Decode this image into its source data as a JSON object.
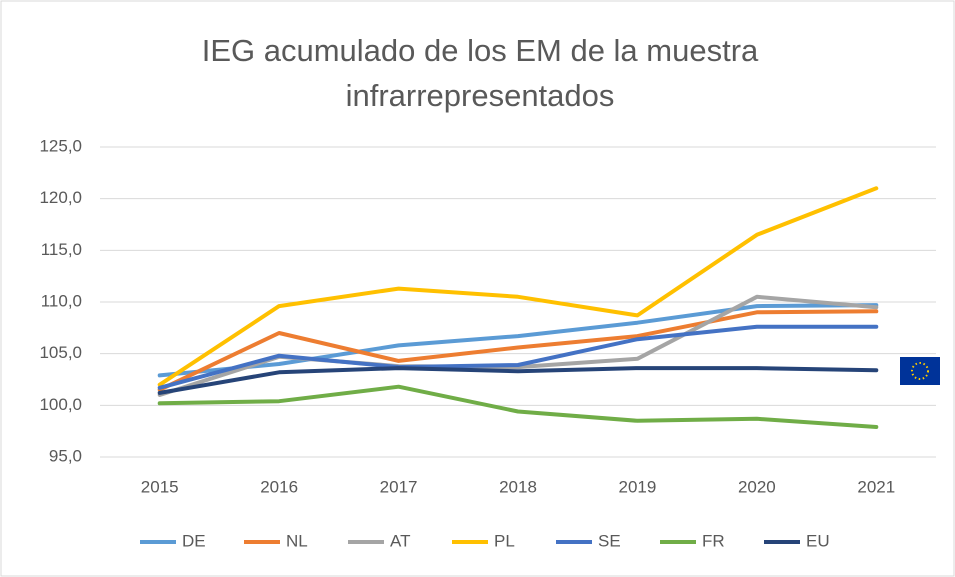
{
  "chart_data": {
    "type": "line",
    "title": [
      "IEG acumulado de los EM de la muestra",
      "infrarrepresentados"
    ],
    "categories": [
      "2015",
      "2016",
      "2017",
      "2018",
      "2019",
      "2020",
      "2021"
    ],
    "ylim": [
      95,
      125
    ],
    "yticks": [
      {
        "value": 95,
        "label": "95,0"
      },
      {
        "value": 100,
        "label": "100,0"
      },
      {
        "value": 105,
        "label": "105,0"
      },
      {
        "value": 110,
        "label": "110,0"
      },
      {
        "value": 115,
        "label": "115,0"
      },
      {
        "value": 120,
        "label": "120,0"
      },
      {
        "value": 125,
        "label": "125,0"
      }
    ],
    "grid": true,
    "legend": "bottom",
    "series": [
      {
        "name": "DE",
        "color": "#5b9bd5",
        "values": [
          102.9,
          104.0,
          105.8,
          106.7,
          108.0,
          109.6,
          109.7
        ]
      },
      {
        "name": "NL",
        "color": "#ed7d31",
        "values": [
          101.5,
          107.0,
          104.3,
          105.6,
          106.7,
          109.0,
          109.1
        ]
      },
      {
        "name": "AT",
        "color": "#a5a5a5",
        "values": [
          101.0,
          104.7,
          103.8,
          103.7,
          104.5,
          110.5,
          109.5
        ]
      },
      {
        "name": "PL",
        "color": "#ffc000",
        "values": [
          102.0,
          109.6,
          111.3,
          110.5,
          108.7,
          116.5,
          121.0
        ]
      },
      {
        "name": "SE",
        "color": "#4472c4",
        "values": [
          101.7,
          104.8,
          103.7,
          103.9,
          106.4,
          107.6,
          107.6
        ]
      },
      {
        "name": "FR",
        "color": "#70ad47",
        "values": [
          100.2,
          100.4,
          101.8,
          99.4,
          98.5,
          98.7,
          97.9
        ]
      },
      {
        "name": "EU",
        "color": "#264478",
        "values": [
          101.2,
          103.2,
          103.6,
          103.3,
          103.6,
          103.6,
          103.4
        ]
      }
    ]
  }
}
